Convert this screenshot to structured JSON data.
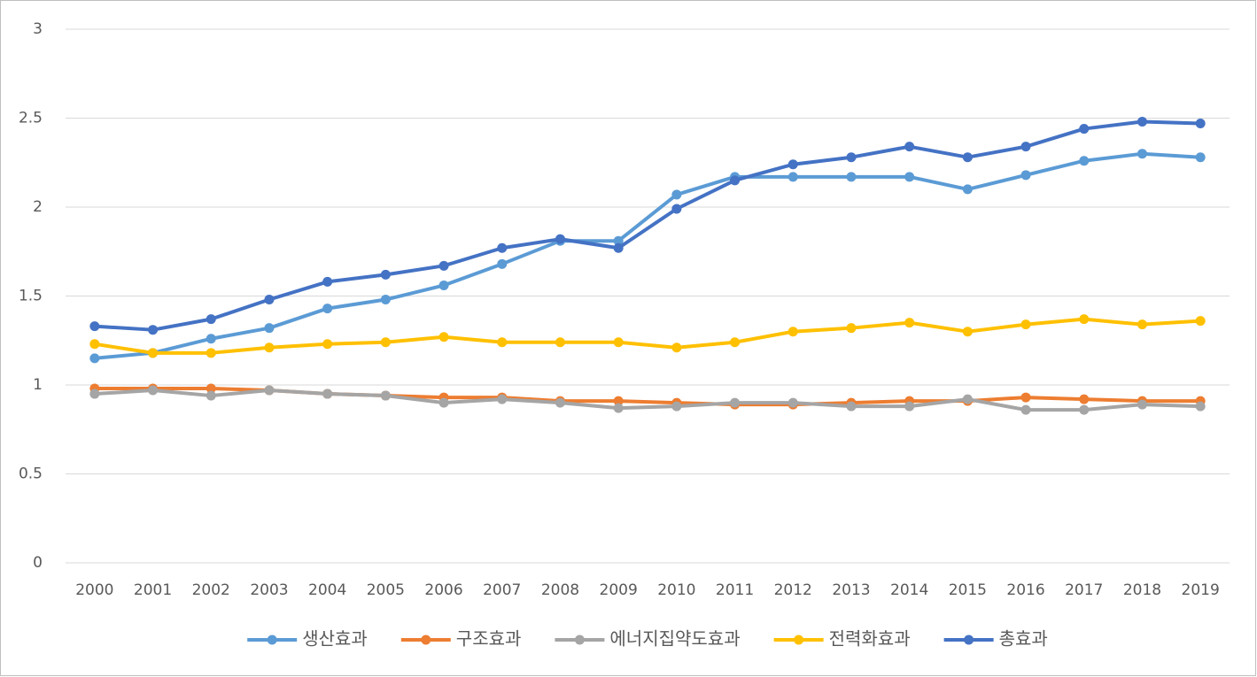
{
  "chart_data": {
    "type": "line",
    "categories": [
      "2000",
      "2001",
      "2002",
      "2003",
      "2004",
      "2005",
      "2006",
      "2007",
      "2008",
      "2009",
      "2010",
      "2011",
      "2012",
      "2013",
      "2014",
      "2015",
      "2016",
      "2017",
      "2018",
      "2019"
    ],
    "series": [
      {
        "name": "생산효과",
        "color": "#5b9bd5",
        "values": [
          1.15,
          1.18,
          1.26,
          1.32,
          1.43,
          1.48,
          1.56,
          1.68,
          1.81,
          1.81,
          2.07,
          2.17,
          2.17,
          2.17,
          2.17,
          2.1,
          2.18,
          2.26,
          2.3,
          2.28
        ]
      },
      {
        "name": "구조효과",
        "color": "#ed7d31",
        "values": [
          0.98,
          0.98,
          0.98,
          0.97,
          0.95,
          0.94,
          0.93,
          0.93,
          0.91,
          0.91,
          0.9,
          0.89,
          0.89,
          0.9,
          0.91,
          0.91,
          0.93,
          0.92,
          0.91,
          0.91
        ]
      },
      {
        "name": "에너지집약도효과",
        "color": "#a5a5a5",
        "values": [
          0.95,
          0.97,
          0.94,
          0.97,
          0.95,
          0.94,
          0.9,
          0.92,
          0.9,
          0.87,
          0.88,
          0.9,
          0.9,
          0.88,
          0.88,
          0.92,
          0.86,
          0.86,
          0.89,
          0.88
        ]
      },
      {
        "name": "전력화효과",
        "color": "#ffc000",
        "values": [
          1.23,
          1.18,
          1.18,
          1.21,
          1.23,
          1.24,
          1.27,
          1.24,
          1.24,
          1.24,
          1.21,
          1.24,
          1.3,
          1.32,
          1.35,
          1.3,
          1.34,
          1.37,
          1.34,
          1.36
        ]
      },
      {
        "name": "총효과",
        "color": "#4472c4",
        "values": [
          1.33,
          1.31,
          1.37,
          1.48,
          1.58,
          1.62,
          1.67,
          1.77,
          1.82,
          1.77,
          1.99,
          2.15,
          2.24,
          2.28,
          2.34,
          2.28,
          2.34,
          2.44,
          2.48,
          2.47
        ]
      }
    ],
    "ylim": [
      0,
      3
    ],
    "yticks": [
      0,
      0.5,
      1,
      1.5,
      2,
      2.5,
      3
    ],
    "grid": true,
    "legend": "bottom"
  }
}
